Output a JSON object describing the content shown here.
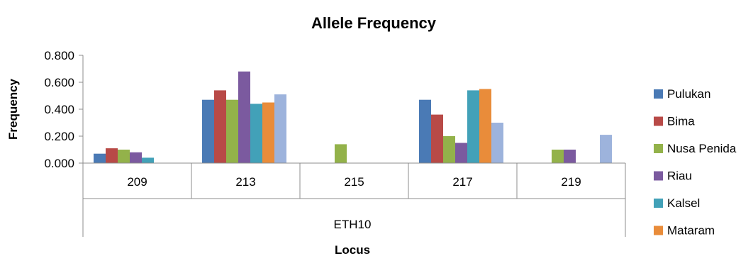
{
  "chart_data": {
    "type": "bar",
    "title": "Allele Frequency",
    "xlabel": "Locus",
    "ylabel": "Frequency",
    "group_label": "ETH10",
    "categories": [
      "209",
      "213",
      "215",
      "217",
      "219"
    ],
    "ylim": [
      0,
      0.8
    ],
    "yticks": [
      "0.000",
      "0.200",
      "0.400",
      "0.600",
      "0.800"
    ],
    "ytick_values": [
      0,
      0.2,
      0.4,
      0.6,
      0.8
    ],
    "grid": false,
    "legend_position": "right",
    "series": [
      {
        "name": "Pulukan",
        "color": "#4a7ab5",
        "values": [
          0.07,
          0.47,
          0,
          0.47,
          0
        ]
      },
      {
        "name": "Bima",
        "color": "#b84a47",
        "values": [
          0.11,
          0.54,
          0,
          0.36,
          0
        ]
      },
      {
        "name": "Nusa Penida",
        "color": "#93b24a",
        "values": [
          0.1,
          0.47,
          0.14,
          0.2,
          0.1
        ]
      },
      {
        "name": "Riau",
        "color": "#7b5a9f",
        "values": [
          0.08,
          0.68,
          0,
          0.15,
          0.1
        ]
      },
      {
        "name": "Kalsel",
        "color": "#42a1b8",
        "values": [
          0.04,
          0.44,
          0,
          0.54,
          0
        ]
      },
      {
        "name": "Mataram",
        "color": "#e98c3a",
        "values": [
          0,
          0.45,
          0,
          0.55,
          0
        ]
      },
      {
        "name": "",
        "color": "#9db3dc",
        "values": [
          0,
          0.51,
          0,
          0.3,
          0.21
        ]
      }
    ]
  }
}
